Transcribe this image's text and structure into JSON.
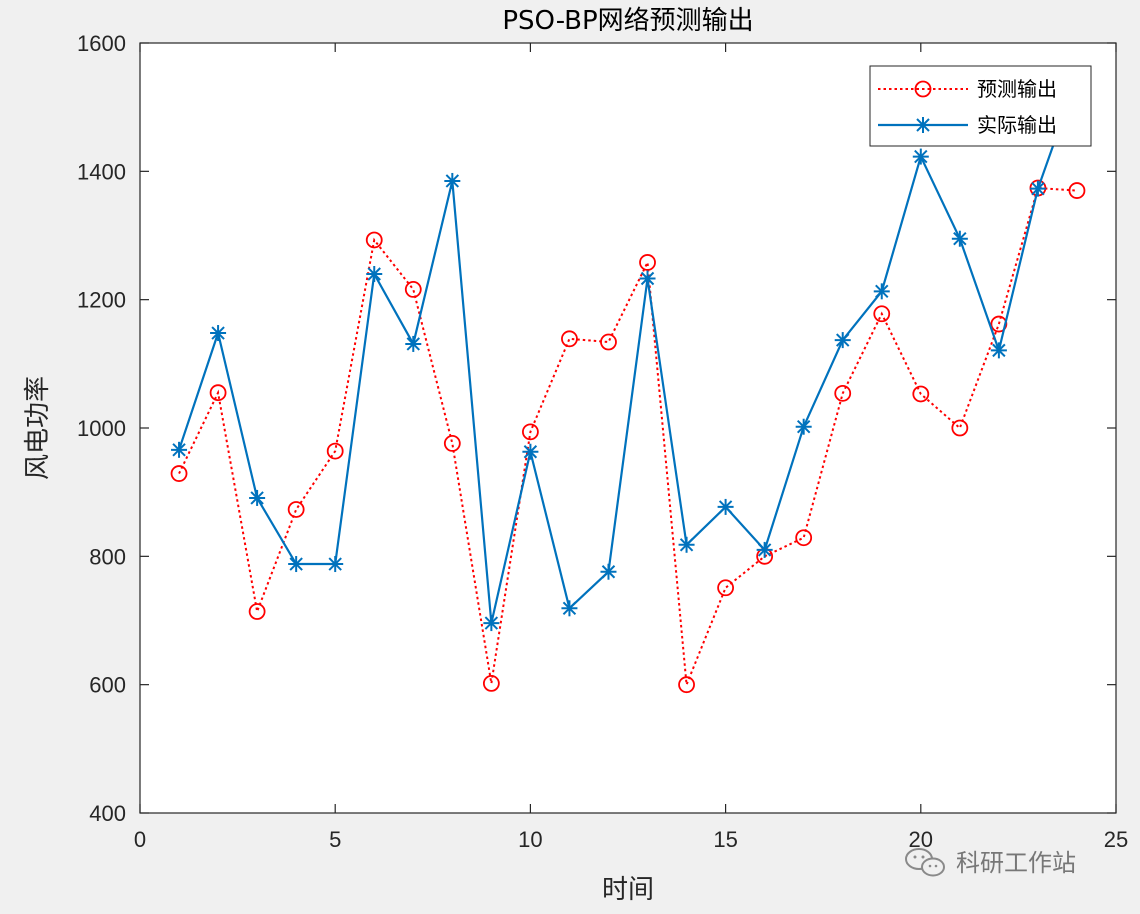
{
  "chart_data": {
    "type": "line",
    "title": "PSO-BP网络预测输出",
    "xlabel": "时间",
    "ylabel": "风电功率",
    "xlim": [
      0,
      25
    ],
    "ylim": [
      400,
      1600
    ],
    "xticks": [
      "0",
      "5",
      "10",
      "15",
      "20",
      "25"
    ],
    "yticks": [
      "400",
      "600",
      "800",
      "1000",
      "1200",
      "1400",
      "1600"
    ],
    "grid": false,
    "legend_position": "top-right",
    "x": [
      1,
      2,
      3,
      4,
      5,
      6,
      7,
      8,
      9,
      10,
      11,
      12,
      13,
      14,
      15,
      16,
      17,
      18,
      19,
      20,
      21,
      22,
      23,
      24
    ],
    "series": [
      {
        "name": "预测输出",
        "color": "#ff0000",
        "line_style": "dotted",
        "marker": "circle",
        "values": [
          929,
          1055,
          714,
          873,
          964,
          1293,
          1216,
          976,
          602,
          994,
          1139,
          1134,
          1258,
          600,
          751,
          800,
          829,
          1054,
          1178,
          1053,
          1000,
          1162,
          1374,
          1370
        ]
      },
      {
        "name": "实际输出",
        "color": "#0072bd",
        "line_style": "solid",
        "marker": "asterisk",
        "values": [
          966,
          1148,
          891,
          788,
          788,
          1240,
          1131,
          1385,
          696,
          963,
          719,
          776,
          1233,
          818,
          877,
          810,
          1002,
          1137,
          1213,
          1423,
          1295,
          1121,
          1373,
          1545
        ]
      }
    ]
  },
  "watermark": {
    "icon": "wechat-icon",
    "text": "科研工作站"
  }
}
